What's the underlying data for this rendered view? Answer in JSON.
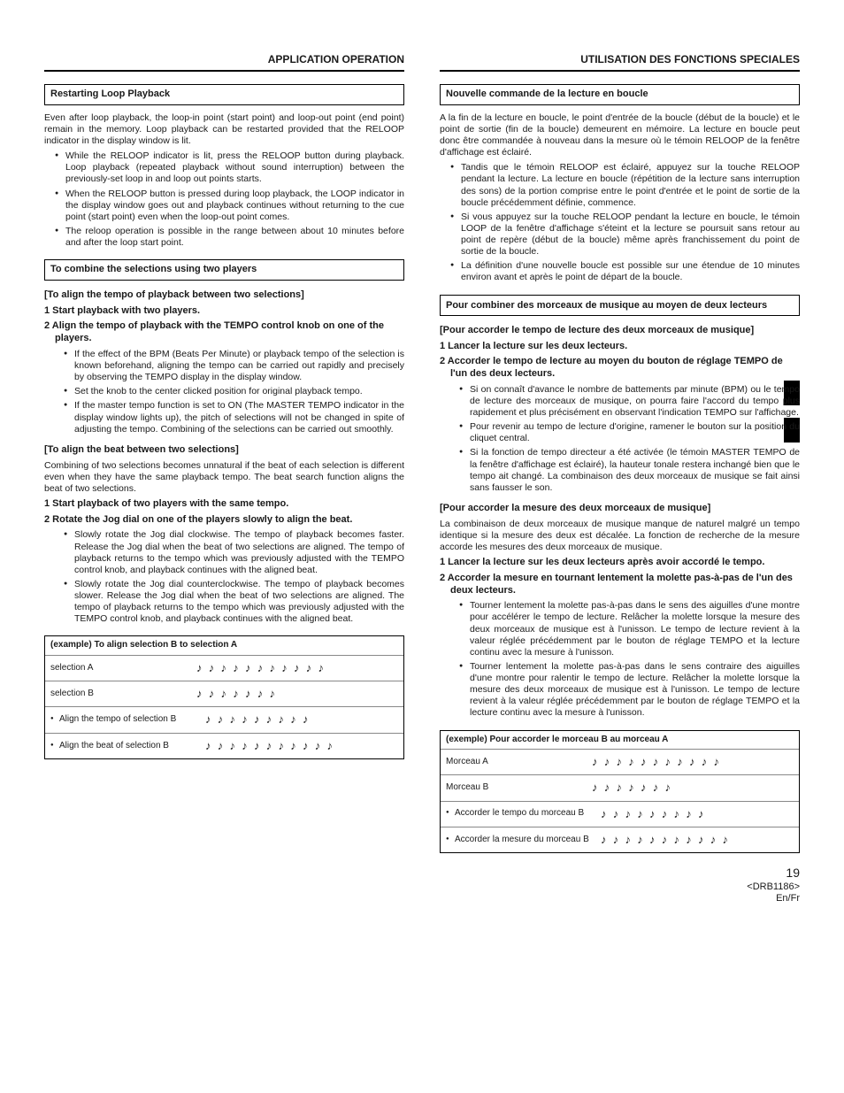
{
  "left": {
    "header": "APPLICATION OPERATION",
    "sec1_title": "Restarting Loop Playback",
    "sec1_intro": "Even after loop playback, the loop-in point (start point) and loop-out point (end point) remain in the memory. Loop playback can be restarted provided that the RELOOP indicator in the display window is lit.",
    "sec1_b1": "While the RELOOP indicator is lit, press the RELOOP button during playback. Loop playback (repeated playback without sound interruption) between the previously-set loop in and loop out points starts.",
    "sec1_b2": "When the RELOOP button is pressed during loop playback, the LOOP indicator in the display window goes out and playback continues without returning to the cue point (start point) even when the loop-out point comes.",
    "sec1_b3": "The reloop operation is possible in the range between about 10 minutes before and after the loop start point.",
    "sec2_title": "To combine the selections using two players",
    "sec2_sub1": "[To align the tempo of playback between two selections]",
    "sec2_n1": "1  Start playback with two players.",
    "sec2_n2": "2  Align the tempo of playback with the TEMPO control knob on one of the players.",
    "sec2_b1": "If the effect of the BPM (Beats Per Minute) or playback tempo of the selection is known beforehand, aligning the tempo can be carried out rapidly and precisely by observing the TEMPO display in the display window.",
    "sec2_b2": "Set the knob to the center clicked position for original playback tempo.",
    "sec2_b3": "If the master tempo function is set to ON (The MASTER TEMPO indicator in the display window lights up), the pitch of selections will not be changed in spite of adjusting the tempo. Combining of the selections can be carried out smoothly.",
    "sec3_sub": "[To align the beat between two selections]",
    "sec3_p": "Combining of two selections becomes unnatural if the beat of each selection is different even when they have the same playback tempo. The beat search function aligns the beat of two selections.",
    "sec3_n1": "1  Start playback of two players with the same tempo.",
    "sec3_n2": "2  Rotate the Jog dial on one of the players slowly to align the beat.",
    "sec3_b1": "Slowly rotate the Jog dial clockwise. The tempo of playback becomes faster. Release the Jog dial when the beat of two selections are aligned. The tempo of playback returns to the tempo which was previously adjusted with the TEMPO control knob, and playback continues with the aligned beat.",
    "sec3_b2": "Slowly rotate the Jog dial counterclockwise. The tempo of playback becomes slower. Release the Jog dial when the beat of two selections are aligned. The tempo of playback returns to the tempo which was previously adjusted with the TEMPO control knob, and playback continues with the aligned beat.",
    "example_title": "(example) To align selection B to selection A",
    "ex_r1": "selection A",
    "ex_r2": "selection B",
    "ex_r3": "Align the tempo of selection B",
    "ex_r4": "Align the beat of selection B",
    "notes1": "♪ ♪ ♪ ♪ ♪ ♪ ♪ ♪ ♪ ♪ ♪",
    "notes2": "♪  ♪  ♪  ♪  ♪  ♪  ♪",
    "notes3": "♪ ♪ ♪ ♪ ♪ ♪ ♪ ♪ ♪",
    "notes4": "♪ ♪ ♪ ♪ ♪ ♪ ♪ ♪ ♪ ♪ ♪"
  },
  "right": {
    "header": "UTILISATION DES FONCTIONS SPECIALES",
    "sec1_title": "Nouvelle commande de la lecture en boucle",
    "sec1_intro": "A la fin de la lecture en boucle, le point d'entrée de la boucle (début de la boucle) et le point de sortie (fin de la boucle) demeurent en mémoire. La lecture en boucle peut donc être commandée à nouveau dans la mesure où le témoin RELOOP de la fenêtre d'affichage est éclairé.",
    "sec1_b1": "Tandis que le témoin RELOOP est éclairé, appuyez sur la touche RELOOP pendant la lecture. La lecture en boucle (répétition de la lecture sans interruption des sons) de la portion comprise entre le point d'entrée et le point de sortie de la boucle précédemment définie, commence.",
    "sec1_b2": "Si vous appuyez sur la touche RELOOP pendant la lecture en boucle, le témoin LOOP de la fenêtre d'affichage s'éteint et la lecture se poursuit sans retour au point de repère (début de la boucle) même après franchissement du point de sortie de la boucle.",
    "sec1_b3": "La définition d'une nouvelle boucle est possible sur une étendue de 10 minutes environ avant et après le point de départ de la boucle.",
    "sec2_title": "Pour combiner des morceaux de musique au moyen de deux lecteurs",
    "sec2_sub1": "[Pour accorder le tempo de lecture des deux morceaux de musique]",
    "sec2_n1": "1  Lancer la lecture sur les deux lecteurs.",
    "sec2_n2": "2  Accorder le tempo de lecture au moyen du bouton de réglage TEMPO de l'un des deux lecteurs.",
    "sec2_b1": "Si on connaît d'avance le nombre de battements par minute (BPM) ou le tempo de lecture des morceaux de musique, on pourra faire l'accord du tempo plus rapidement et plus précisément en observant l'indication TEMPO sur l'affichage.",
    "sec2_b2": "Pour revenir au tempo de lecture d'origine, ramener le bouton sur la position du cliquet central.",
    "sec2_b3": "Si la fonction de tempo directeur a été activée (le témoin MASTER TEMPO de la fenêtre d'affichage est éclairé), la hauteur tonale restera inchangé bien que le tempo ait changé. La combinaison des deux morceaux de musique se fait ainsi sans fausser le son.",
    "sec3_sub": "[Pour accorder la mesure des deux morceaux de musique]",
    "sec3_p": "La combinaison de deux morceaux de musique manque de naturel malgré un tempo identique si la mesure des deux est décalée. La fonction de recherche de la mesure accorde les mesures des deux morceaux de musique.",
    "sec3_n1": "1  Lancer la lecture sur les deux lecteurs après avoir accordé le tempo.",
    "sec3_n2": "2  Accorder la mesure en tournant lentement la molette pas-à-pas de l'un des deux lecteurs.",
    "sec3_b1": "Tourner lentement la molette pas-à-pas dans le sens des aiguilles d'une montre pour accélérer le tempo de lecture. Relâcher la molette lorsque la mesure des deux morceaux de musique est à l'unisson. Le tempo de lecture revient à la valeur réglée précédemment par le bouton de réglage TEMPO et la lecture continu avec la mesure à l'unisson.",
    "sec3_b2": "Tourner lentement la molette pas-à-pas dans le sens contraire des aiguilles d'une montre pour ralentir le tempo de lecture. Relâcher la molette lorsque la mesure des deux morceaux de musique est à l'unisson. Le tempo de lecture revient à la valeur réglée précédemment par le bouton de réglage TEMPO et la lecture continu avec la mesure à l'unisson.",
    "example_title": "(exemple) Pour accorder le morceau B au morceau A",
    "ex_r1": "Morceau A",
    "ex_r2": "Morceau B",
    "ex_r3": "Accorder le tempo du morceau B",
    "ex_r4": "Accorder la mesure du morceau B",
    "notes1": "♪ ♪ ♪ ♪ ♪ ♪ ♪ ♪ ♪ ♪ ♪",
    "notes2": "♪  ♪  ♪  ♪  ♪  ♪  ♪",
    "notes3": "♪ ♪ ♪ ♪ ♪ ♪ ♪ ♪ ♪",
    "notes4": "♪ ♪ ♪ ♪ ♪ ♪ ♪ ♪ ♪ ♪ ♪"
  },
  "footer": {
    "page": "19",
    "code": "<DRB1186>",
    "lang": "En/Fr"
  }
}
